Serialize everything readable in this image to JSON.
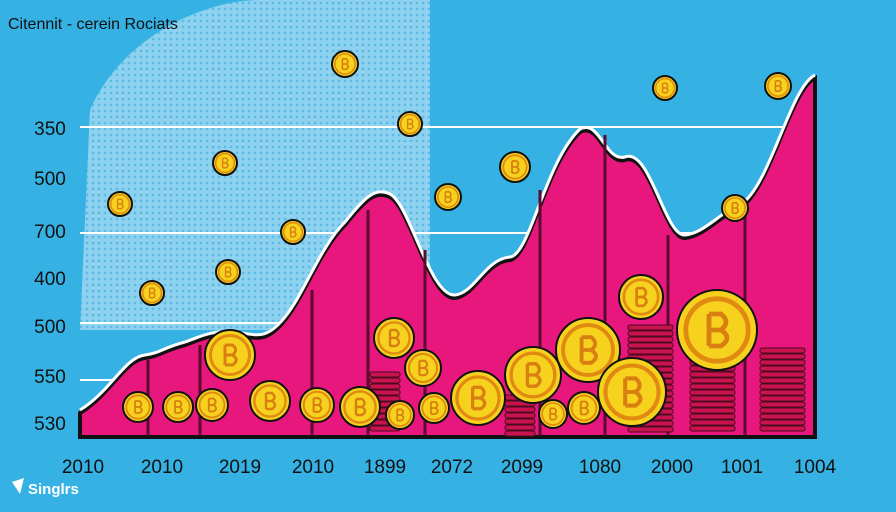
{
  "header": {
    "title": "Citennit - cerein Rociats"
  },
  "y_labels": [
    "350",
    "500",
    "700",
    "400",
    "500",
    "550",
    "530"
  ],
  "x_labels": [
    "2010",
    "2010",
    "2019",
    "2010",
    "1899",
    "2072",
    "2099",
    "1080",
    "2000",
    "1001",
    "1004"
  ],
  "brand": "Singlrs"
}
